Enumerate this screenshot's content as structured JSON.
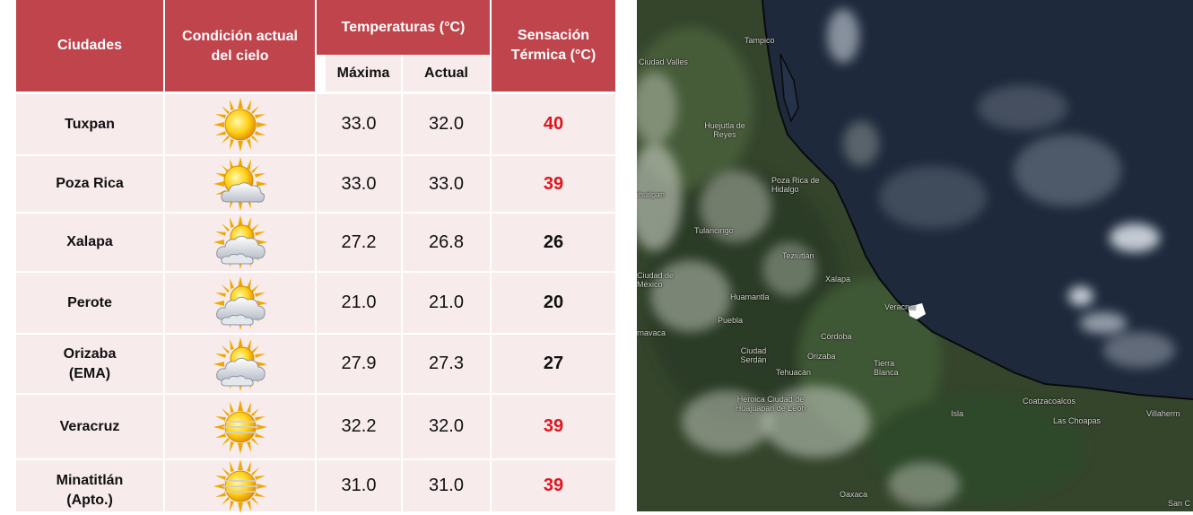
{
  "table": {
    "headers": {
      "city": "Ciudades",
      "sky_line1": "Condición actual",
      "sky_line2": "del cielo",
      "temps": "Temperaturas (°C)",
      "max": "Máxima",
      "current": "Actual",
      "feel_line1": "Sensación",
      "feel_line2": "Térmica (°C)"
    },
    "rows": [
      {
        "city": "Tuxpan",
        "city2": "",
        "sky": "sunny-icon",
        "max": "33.0",
        "current": "32.0",
        "feel": "40",
        "hot": true
      },
      {
        "city": "Poza Rica",
        "city2": "",
        "sky": "partly-cloudy-icon",
        "max": "33.0",
        "current": "33.0",
        "feel": "39",
        "hot": true
      },
      {
        "city": "Xalapa",
        "city2": "",
        "sky": "mostly-cloudy-icon",
        "max": "27.2",
        "current": "26.8",
        "feel": "26",
        "hot": false
      },
      {
        "city": "Perote",
        "city2": "",
        "sky": "mostly-cloudy-icon",
        "max": "21.0",
        "current": "21.0",
        "feel": "20",
        "hot": false
      },
      {
        "city": "Orizaba",
        "city2": "(EMA)",
        "sky": "mostly-cloudy-icon",
        "max": "27.9",
        "current": "27.3",
        "feel": "27",
        "hot": false
      },
      {
        "city": "Veracruz",
        "city2": "",
        "sky": "hazy-sun-icon",
        "max": "32.2",
        "current": "32.0",
        "feel": "39",
        "hot": true
      },
      {
        "city": "Minatitlán",
        "city2": "(Apto.)",
        "sky": "hazy-sun-icon",
        "max": "31.0",
        "current": "31.0",
        "feel": "39",
        "hot": true
      }
    ],
    "colors": {
      "header": "#c0444c",
      "cell": "#f7ebec",
      "hot": "#e0141c"
    }
  },
  "map": {
    "places": [
      "Tampico",
      "Ciudad Valles",
      "Huejutla de Reyes",
      "Poza Rica de Hidalgo",
      "ihuilpan",
      "Tulancingo",
      "Teziutlán",
      "Ciudad de México",
      "Huamantla",
      "Xalapa",
      "Veracruz",
      "Puebla",
      "rnavaca",
      "Córdoba",
      "Orizaba",
      "Ciudad Serdán",
      "Tehuacán",
      "Tierra Blanca",
      "Heroica Ciudad de Huajuapan de León",
      "Isla",
      "Coatzacoalcos",
      "Las Choapas",
      "Villaherm",
      "Oaxaca",
      "San C"
    ]
  }
}
